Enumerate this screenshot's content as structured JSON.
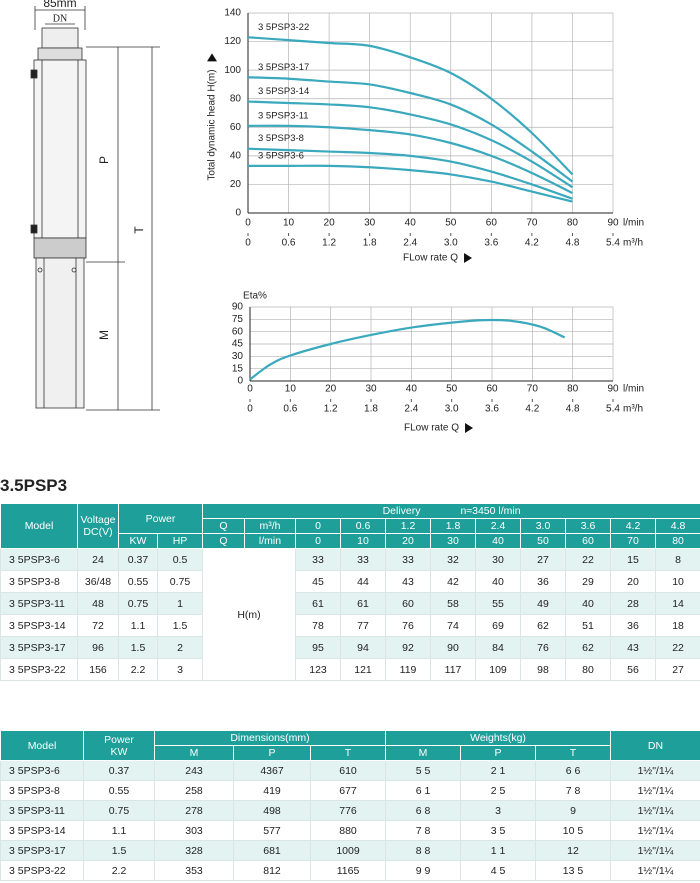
{
  "drawing": {
    "width": "85mm",
    "dn": "DN",
    "p": "P",
    "t": "T",
    "m": "M"
  },
  "chart_data": [
    {
      "type": "line",
      "ylabel": "Total dynamic head H(m)",
      "xlabel": "FLow rate Q",
      "xunit": "l/min",
      "x2unit": "m³/h",
      "x": [
        0,
        10,
        20,
        30,
        40,
        50,
        60,
        70,
        80
      ],
      "xlim": [
        0,
        90
      ],
      "xticks": [
        0,
        10,
        20,
        30,
        40,
        50,
        60,
        70,
        80,
        90
      ],
      "x2lim": [
        0,
        5.4
      ],
      "x2ticks": [
        0,
        0.6,
        1.2,
        1.8,
        2.4,
        {
          "value": 3,
          "label": "3.0"
        },
        3.6,
        4.2,
        4.8,
        5.4
      ],
      "ylim": [
        0,
        140
      ],
      "yticks": [
        0,
        20,
        40,
        60,
        80,
        100,
        120,
        140
      ],
      "grid": true,
      "series": [
        {
          "name": "3 5PSP3-22",
          "color": "#3aa9bd",
          "values": [
            123,
            121,
            119,
            117,
            109,
            98,
            80,
            56,
            27
          ]
        },
        {
          "name": "3 5PSP3-17",
          "color": "#3aa9bd",
          "values": [
            95,
            94,
            92,
            90,
            84,
            76,
            62,
            43,
            22
          ]
        },
        {
          "name": "3 5PSP3-14",
          "color": "#3aa9bd",
          "values": [
            78,
            77,
            76,
            74,
            69,
            62,
            51,
            36,
            18
          ]
        },
        {
          "name": "3 5PSP3-11",
          "color": "#3aa9bd",
          "values": [
            61,
            61,
            60,
            58,
            55,
            49,
            40,
            28,
            14
          ]
        },
        {
          "name": "3 5PSP3-8",
          "color": "#3aa9bd",
          "values": [
            45,
            44,
            43,
            42,
            40,
            36,
            29,
            20,
            10
          ]
        },
        {
          "name": "3 5PSP3-6",
          "color": "#3aa9bd",
          "values": [
            33,
            33,
            33,
            32,
            30,
            27,
            22,
            15,
            8
          ]
        }
      ]
    },
    {
      "type": "line",
      "ylabel": "Eta%",
      "xlabel": "FLow rate Q",
      "xunit": "l/min",
      "x2unit": "m³/h",
      "x": [
        0,
        5,
        10,
        20,
        30,
        40,
        50,
        58,
        65,
        72,
        78
      ],
      "xlim": [
        0,
        90
      ],
      "xticks": [
        0,
        10,
        20,
        30,
        40,
        50,
        60,
        70,
        80,
        90
      ],
      "x2lim": [
        0,
        5.4
      ],
      "x2ticks": [
        0,
        0.6,
        1.2,
        1.8,
        2.4,
        {
          "value": 3,
          "label": "3.0"
        },
        3.6,
        4.2,
        4.8,
        5.4
      ],
      "ylim": [
        0,
        90
      ],
      "yticks": [
        0,
        15,
        30,
        45,
        60,
        75,
        90
      ],
      "grid": true,
      "series": [
        {
          "color": "#3aa9bd",
          "values": [
            2,
            20,
            31,
            45,
            56,
            65,
            71,
            74,
            73,
            66,
            53
          ]
        }
      ]
    }
  ],
  "table1": {
    "title": "3.5PSP3",
    "model": "Model",
    "voltage": "Voltage DC(V)",
    "power": "Power",
    "delivery": "Delivery",
    "speed": "n≈3450 l/min",
    "q": "Q",
    "m3h": "m³/h",
    "lmin": "l/min",
    "kw": "KW",
    "hp": "HP",
    "head": "H(m)",
    "q_m3h": [
      "0",
      "0.6",
      "1.2",
      "1.8",
      "2.4",
      "3.0",
      "3.6",
      "4.2",
      "4.8"
    ],
    "q_lmin": [
      "0",
      "10",
      "20",
      "30",
      "40",
      "50",
      "60",
      "70",
      "80"
    ],
    "rows": [
      {
        "model": "3 5PSP3-6",
        "voltage": "24",
        "kw": "0.37",
        "hp": "0.5",
        "head": [
          "33",
          "33",
          "33",
          "32",
          "30",
          "27",
          "22",
          "15",
          "8"
        ]
      },
      {
        "model": "3 5PSP3-8",
        "voltage": "36/48",
        "kw": "0.55",
        "hp": "0.75",
        "head": [
          "45",
          "44",
          "43",
          "42",
          "40",
          "36",
          "29",
          "20",
          "10"
        ]
      },
      {
        "model": "3 5PSP3-11",
        "voltage": "48",
        "kw": "0.75",
        "hp": "1",
        "head": [
          "61",
          "61",
          "60",
          "58",
          "55",
          "49",
          "40",
          "28",
          "14"
        ]
      },
      {
        "model": "3 5PSP3-14",
        "voltage": "72",
        "kw": "1.1",
        "hp": "1.5",
        "head": [
          "78",
          "77",
          "76",
          "74",
          "69",
          "62",
          "51",
          "36",
          "18"
        ]
      },
      {
        "model": "3 5PSP3-17",
        "voltage": "96",
        "kw": "1.5",
        "hp": "2",
        "head": [
          "95",
          "94",
          "92",
          "90",
          "84",
          "76",
          "62",
          "43",
          "22"
        ]
      },
      {
        "model": "3 5PSP3-22",
        "voltage": "156",
        "kw": "2.2",
        "hp": "3",
        "head": [
          "123",
          "121",
          "119",
          "117",
          "109",
          "98",
          "80",
          "56",
          "27"
        ]
      }
    ]
  },
  "table2": {
    "model": "Model",
    "power": "Power",
    "power_unit": "KW",
    "dimensions": "Dimensions(mm)",
    "weights": "Weights(kg)",
    "dn": "DN",
    "dim_cols": [
      "M",
      "P",
      "T"
    ],
    "wt_cols": [
      "M",
      "P",
      "T"
    ],
    "rows": [
      [
        "3 5PSP3-6",
        "0.37",
        "243",
        "4367",
        "610",
        "5 5",
        "2 1",
        "6 6",
        "1½\"/1¼"
      ],
      [
        "3 5PSP3-8",
        "0.55",
        "258",
        "419",
        "677",
        "6 1",
        "2 5",
        "7 8",
        "1½\"/1¼"
      ],
      [
        "3 5PSP3-11",
        "0.75",
        "278",
        "498",
        "776",
        "6 8",
        "3",
        "9",
        "1½\"/1¼"
      ],
      [
        "3 5PSP3-14",
        "1.1",
        "303",
        "577",
        "880",
        "7 8",
        "3 5",
        "10 5",
        "1½\"/1¼"
      ],
      [
        "3 5PSP3-17",
        "1.5",
        "328",
        "681",
        "1009",
        "8 8",
        "1 1",
        "12",
        "1½\"/1¼"
      ],
      [
        "3 5PSP3-22",
        "2.2",
        "353",
        "812",
        "1165",
        "9 9",
        "4 5",
        "13 5",
        "1½\"/1¼"
      ]
    ]
  }
}
